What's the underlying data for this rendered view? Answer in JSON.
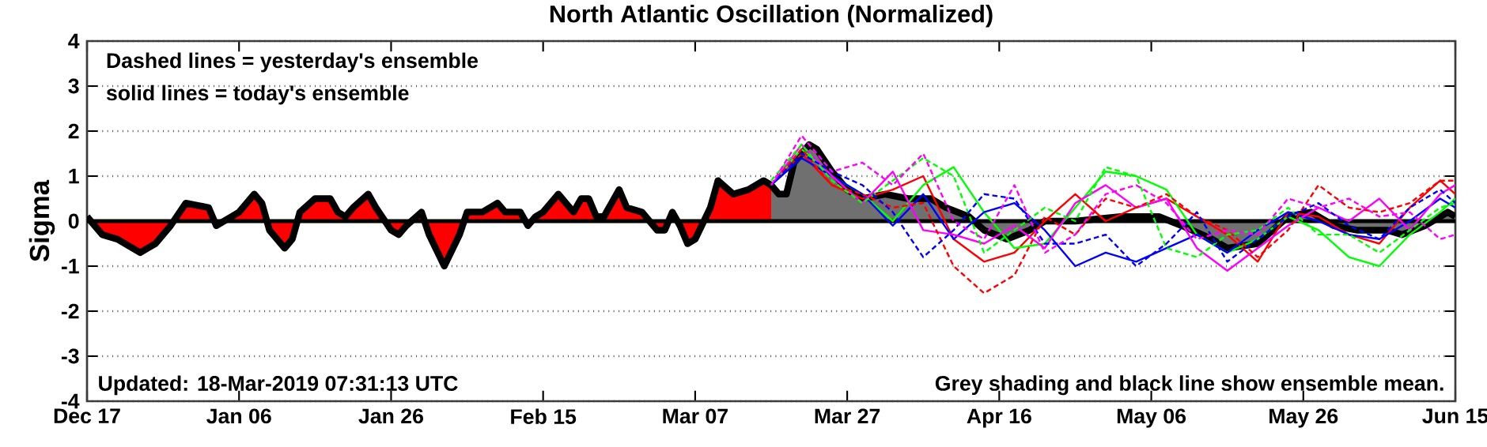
{
  "chart_data": {
    "type": "line",
    "title": "North Atlantic Oscillation (Normalized)",
    "ylabel": "Sigma",
    "annotations": [
      "Dashed lines = yesterday's ensemble",
      "solid lines = today's ensemble",
      "Updated: 18-Mar-2019 07:31:13 UTC",
      "Grey shading and black line show ensemble mean."
    ],
    "xlim": [
      "2018-12-17",
      "2019-06-15"
    ],
    "xticks": [
      {
        "value": "2018-12-17",
        "label": "Dec 17"
      },
      {
        "value": "2019-01-06",
        "label": "Jan 06"
      },
      {
        "value": "2019-01-26",
        "label": "Jan 26"
      },
      {
        "value": "2019-02-15",
        "label": "Feb 15"
      },
      {
        "value": "2019-03-07",
        "label": "Mar 07"
      },
      {
        "value": "2019-03-27",
        "label": "Mar 27"
      },
      {
        "value": "2019-04-16",
        "label": "Apr 16"
      },
      {
        "value": "2019-05-06",
        "label": "May 06"
      },
      {
        "value": "2019-05-26",
        "label": "May 26"
      },
      {
        "value": "2019-06-15",
        "label": "Jun 15"
      }
    ],
    "ylim": [
      -4,
      4
    ],
    "yticks": [
      -4,
      -3,
      -2,
      -1,
      0,
      1,
      2,
      3,
      4
    ],
    "grid": "y",
    "ref_lines": [
      {
        "axis": "y",
        "value": 0,
        "color": "#000000"
      }
    ],
    "x": [
      "2019-03-17",
      "2019-03-21",
      "2019-03-25",
      "2019-03-29",
      "2019-04-02",
      "2019-04-06",
      "2019-04-10",
      "2019-04-14",
      "2019-04-18",
      "2019-04-22",
      "2019-04-26",
      "2019-04-30",
      "2019-05-04",
      "2019-05-08",
      "2019-05-12",
      "2019-05-16",
      "2019-05-20",
      "2019-05-24",
      "2019-05-28",
      "2019-06-01",
      "2019-06-05",
      "2019-06-09",
      "2019-06-13",
      "2019-06-15"
    ],
    "series": [
      {
        "type": "area",
        "color": "#ff0000",
        "x": [
          "2018-12-17",
          "2018-12-19",
          "2018-12-21",
          "2018-12-24",
          "2018-12-25",
          "2018-12-26",
          "2018-12-28",
          "2018-12-30",
          "2019-01-02",
          "2019-01-03",
          "2019-01-05",
          "2019-01-06",
          "2019-01-08",
          "2019-01-09",
          "2019-01-10",
          "2019-01-12",
          "2019-01-13",
          "2019-01-14",
          "2019-01-16",
          "2019-01-18",
          "2019-01-19",
          "2019-01-20",
          "2019-01-21",
          "2019-01-23",
          "2019-01-24",
          "2019-01-26",
          "2019-01-27",
          "2019-01-28",
          "2019-01-30",
          "2019-01-31",
          "2019-02-02",
          "2019-02-04",
          "2019-02-05",
          "2019-02-07",
          "2019-02-09",
          "2019-02-10",
          "2019-02-12",
          "2019-02-13",
          "2019-02-14",
          "2019-02-15",
          "2019-02-17",
          "2019-02-19",
          "2019-02-20",
          "2019-02-21",
          "2019-02-22",
          "2019-02-23",
          "2019-02-25",
          "2019-02-26",
          "2019-02-28",
          "2019-03-02",
          "2019-03-03",
          "2019-03-04",
          "2019-03-05",
          "2019-03-06",
          "2019-03-07",
          "2019-03-09",
          "2019-03-10",
          "2019-03-12",
          "2019-03-14",
          "2019-03-16",
          "2019-03-17"
        ],
        "values": [
          0.1,
          -0.3,
          -0.4,
          -0.7,
          -0.6,
          -0.5,
          -0.1,
          0.4,
          0.3,
          -0.1,
          0.1,
          0.2,
          0.6,
          0.4,
          -0.2,
          -0.6,
          -0.4,
          0.2,
          0.5,
          0.5,
          0.2,
          0.1,
          0.3,
          0.6,
          0.3,
          -0.2,
          -0.3,
          -0.1,
          0.2,
          -0.3,
          -1.0,
          -0.3,
          0.2,
          0.2,
          0.4,
          0.2,
          0.2,
          -0.1,
          0.1,
          0.2,
          0.6,
          0.2,
          0.5,
          0.5,
          0.1,
          0.1,
          0.7,
          0.3,
          0.2,
          -0.2,
          -0.2,
          0.2,
          -0.1,
          -0.5,
          -0.4,
          0.3,
          0.9,
          0.6,
          0.7,
          0.9,
          0.8
        ]
      },
      {
        "type": "area",
        "color": "#707070",
        "x": [
          "2019-03-17",
          "2019-03-18",
          "2019-03-19",
          "2019-03-20",
          "2019-03-22",
          "2019-03-23",
          "2019-03-25",
          "2019-03-27",
          "2019-03-29",
          "2019-04-01",
          "2019-04-04",
          "2019-04-07",
          "2019-04-09",
          "2019-04-12",
          "2019-04-14",
          "2019-04-17",
          "2019-04-20",
          "2019-04-22",
          "2019-04-26",
          "2019-05-02",
          "2019-05-07",
          "2019-05-10",
          "2019-05-14",
          "2019-05-16",
          "2019-05-20",
          "2019-05-22",
          "2019-05-24",
          "2019-05-27",
          "2019-05-30",
          "2019-06-02",
          "2019-06-06",
          "2019-06-08",
          "2019-06-11",
          "2019-06-14",
          "2019-06-15"
        ],
        "values": [
          0.8,
          0.6,
          0.6,
          1.3,
          1.7,
          1.6,
          1.1,
          0.7,
          0.5,
          0.6,
          0.5,
          0.5,
          0.3,
          0.1,
          -0.2,
          -0.4,
          -0.2,
          0.0,
          0.0,
          0.1,
          0.1,
          -0.1,
          -0.4,
          -0.6,
          -0.5,
          -0.2,
          0.1,
          0.2,
          -0.1,
          -0.2,
          -0.2,
          -0.3,
          -0.1,
          0.2,
          0.1
        ]
      },
      {
        "color": "#ff0000",
        "line_style": "solid",
        "values": [
          0.8,
          1.5,
          0.8,
          0.5,
          0.7,
          1.0,
          -0.4,
          -0.9,
          -0.7,
          0.0,
          0.6,
          0.0,
          0.3,
          0.5,
          0.1,
          -0.3,
          -0.9,
          0.2,
          0.1,
          -0.3,
          -0.5,
          0.3,
          0.9,
          0.6
        ]
      },
      {
        "color": "#00ff00",
        "line_style": "solid",
        "values": [
          0.8,
          1.6,
          1.0,
          0.6,
          0.0,
          0.8,
          1.2,
          0.2,
          -0.6,
          -0.5,
          0.3,
          1.1,
          1.0,
          0.7,
          -0.3,
          -0.7,
          -0.4,
          0.1,
          -0.2,
          -0.8,
          -1.0,
          -0.3,
          0.2,
          0.5
        ]
      },
      {
        "color": "#0000ff",
        "line_style": "solid",
        "values": [
          0.8,
          1.4,
          1.0,
          0.6,
          -0.1,
          0.6,
          -0.4,
          0.2,
          0.4,
          -0.2,
          -1.0,
          -0.7,
          -0.9,
          -0.6,
          -0.3,
          -0.7,
          -0.2,
          0.2,
          0.0,
          -0.3,
          -0.4,
          0.0,
          0.5,
          0.3
        ]
      },
      {
        "color": "#ff00ff",
        "line_style": "solid",
        "values": [
          0.8,
          1.7,
          1.0,
          0.4,
          1.1,
          -0.2,
          -0.3,
          -0.5,
          -0.1,
          -0.6,
          0.4,
          0.8,
          0.3,
          0.5,
          -0.6,
          -1.1,
          -0.6,
          -0.1,
          0.3,
          0.0,
          0.5,
          -0.2,
          0.6,
          0.8
        ]
      },
      {
        "color": "#ff0000",
        "line_style": "dashed",
        "values": [
          0.8,
          1.6,
          0.8,
          0.6,
          0.3,
          0.4,
          -1.0,
          -1.6,
          -1.2,
          0.1,
          -0.3,
          0.5,
          0.3,
          0.6,
          0.1,
          -0.2,
          -0.8,
          -0.2,
          0.8,
          0.3,
          0.2,
          0.4,
          0.9,
          0.9
        ]
      },
      {
        "color": "#00ff00",
        "line_style": "dashed",
        "values": [
          0.9,
          1.7,
          0.9,
          0.4,
          0.9,
          1.4,
          1.0,
          -0.7,
          -0.2,
          0.3,
          0.0,
          1.2,
          1.0,
          -0.6,
          -0.8,
          -0.3,
          -0.2,
          0.3,
          -0.3,
          -0.3,
          -0.7,
          -0.2,
          0.3,
          0.4
        ]
      },
      {
        "color": "#0000ff",
        "line_style": "dashed",
        "values": [
          0.8,
          1.5,
          1.1,
          0.8,
          0.2,
          -0.8,
          -0.2,
          0.6,
          0.5,
          -0.5,
          -0.5,
          -0.3,
          -1.0,
          -0.5,
          0.2,
          -0.9,
          -0.4,
          0.1,
          0.4,
          -0.1,
          -0.4,
          0.3,
          0.7,
          0.4
        ]
      },
      {
        "color": "#ff00ff",
        "line_style": "dashed",
        "values": [
          0.8,
          1.9,
          1.1,
          1.3,
          0.8,
          1.5,
          0.0,
          -0.4,
          0.8,
          -0.7,
          -0.3,
          0.6,
          0.8,
          0.4,
          -0.4,
          -0.2,
          -0.3,
          0.5,
          0.3,
          0.5,
          0.1,
          0.2,
          -0.4,
          -0.3
        ]
      }
    ]
  }
}
